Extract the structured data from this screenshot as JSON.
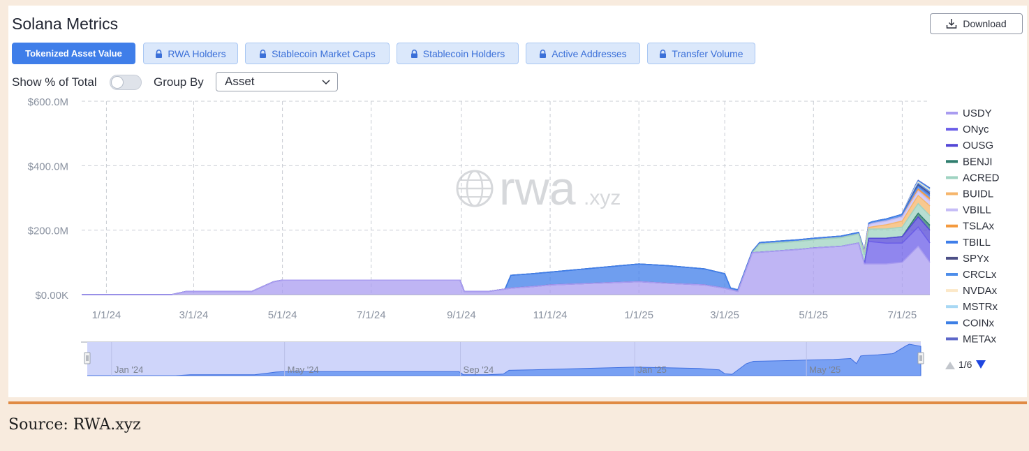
{
  "header": {
    "title": "Solana Metrics",
    "download_label": "Download"
  },
  "tabs": [
    {
      "label": "Tokenized Asset Value",
      "active": true,
      "locked": false
    },
    {
      "label": "RWA Holders",
      "active": false,
      "locked": true
    },
    {
      "label": "Stablecoin Market Caps",
      "active": false,
      "locked": true
    },
    {
      "label": "Stablecoin Holders",
      "active": false,
      "locked": true
    },
    {
      "label": "Active Addresses",
      "active": false,
      "locked": true
    },
    {
      "label": "Transfer Volume",
      "active": false,
      "locked": true
    }
  ],
  "controls": {
    "show_pct_label": "Show % of Total",
    "show_pct_enabled": false,
    "group_by_label": "Group By",
    "group_by_value": "Asset"
  },
  "legend": {
    "pager": "1/6"
  },
  "watermark": {
    "text": "rwa",
    "suffix": ".xyz"
  },
  "footer": {
    "source": "Source: RWA.xyz"
  },
  "chart_data": {
    "type": "area",
    "stacked": true,
    "y_tick_labels": [
      "$0.00K",
      "$200.0M",
      "$400.0M",
      "$600.0M"
    ],
    "y_ticks": [
      0,
      200,
      400,
      600
    ],
    "ylim": [
      0,
      600
    ],
    "y_unit": "M USD",
    "x_tick_labels": [
      "1/1/24",
      "3/1/24",
      "5/1/24",
      "7/1/24",
      "9/1/24",
      "11/1/24",
      "1/1/25",
      "3/1/25",
      "5/1/25",
      "7/1/25"
    ],
    "x_ticks": [
      "2024-01-01",
      "2024-03-01",
      "2024-05-01",
      "2024-07-01",
      "2024-09-01",
      "2024-11-01",
      "2025-01-01",
      "2025-03-01",
      "2025-05-01",
      "2025-07-01"
    ],
    "xlim": [
      "2023-12-15",
      "2025-07-20"
    ],
    "grid": true,
    "legend_position": "right",
    "navigator_labels": [
      "Jan '24",
      "May '24",
      "Sep '24",
      "Jan '25",
      "May '25"
    ],
    "navigator_ticks": [
      "2024-01-01",
      "2024-05-01",
      "2024-09-01",
      "2025-01-01",
      "2025-05-01"
    ],
    "series": [
      {
        "name": "USDY",
        "color": "#a99cf0",
        "points": [
          [
            "2023-12-15",
            0
          ],
          [
            "2024-02-15",
            0
          ],
          [
            "2024-02-25",
            10
          ],
          [
            "2024-04-10",
            10
          ],
          [
            "2024-04-20",
            30
          ],
          [
            "2024-04-25",
            40
          ],
          [
            "2024-05-01",
            45
          ],
          [
            "2024-07-01",
            45
          ],
          [
            "2024-08-31",
            45
          ],
          [
            "2024-09-03",
            10
          ],
          [
            "2024-09-20",
            10
          ],
          [
            "2024-10-05",
            20
          ],
          [
            "2024-10-20",
            25
          ],
          [
            "2024-11-01",
            30
          ],
          [
            "2024-12-01",
            35
          ],
          [
            "2025-01-01",
            40
          ],
          [
            "2025-01-20",
            35
          ],
          [
            "2025-02-15",
            30
          ],
          [
            "2025-03-01",
            20
          ],
          [
            "2025-03-10",
            10
          ],
          [
            "2025-03-20",
            130
          ],
          [
            "2025-04-20",
            140
          ],
          [
            "2025-05-01",
            145
          ],
          [
            "2025-05-20",
            150
          ],
          [
            "2025-06-01",
            160
          ],
          [
            "2025-06-05",
            95
          ],
          [
            "2025-06-20",
            95
          ],
          [
            "2025-07-01",
            100
          ],
          [
            "2025-07-12",
            150
          ],
          [
            "2025-07-20",
            100
          ]
        ]
      },
      {
        "name": "ONyc",
        "color": "#6b5ee8",
        "points": [
          [
            "2023-12-15",
            0
          ],
          [
            "2025-06-05",
            0
          ],
          [
            "2025-06-08",
            70
          ],
          [
            "2025-07-01",
            60
          ],
          [
            "2025-07-20",
            60
          ]
        ]
      },
      {
        "name": "OUSG",
        "color": "#5347d6",
        "points": [
          [
            "2023-12-15",
            0
          ],
          [
            "2025-06-05",
            0
          ],
          [
            "2025-06-08",
            10
          ],
          [
            "2025-07-01",
            20
          ],
          [
            "2025-07-20",
            40
          ]
        ]
      },
      {
        "name": "BENJI",
        "color": "#2f7d6e",
        "points": [
          [
            "2023-12-15",
            0
          ],
          [
            "2025-07-01",
            0
          ],
          [
            "2025-07-10",
            10
          ],
          [
            "2025-07-20",
            15
          ]
        ]
      },
      {
        "name": "ACRED",
        "color": "#9fd3c2",
        "points": [
          [
            "2023-12-15",
            0
          ],
          [
            "2025-03-20",
            0
          ],
          [
            "2025-03-25",
            25
          ],
          [
            "2025-05-01",
            25
          ],
          [
            "2025-06-01",
            28
          ],
          [
            "2025-07-20",
            30
          ]
        ]
      },
      {
        "name": "BUIDL",
        "color": "#f6b56b",
        "points": [
          [
            "2023-12-15",
            0
          ],
          [
            "2025-06-01",
            0
          ],
          [
            "2025-06-15",
            10
          ],
          [
            "2025-07-20",
            30
          ]
        ]
      },
      {
        "name": "VBILL",
        "color": "#c6bdf7",
        "points": [
          [
            "2023-12-15",
            0
          ],
          [
            "2025-06-01",
            0
          ],
          [
            "2025-06-10",
            10
          ],
          [
            "2025-07-20",
            15
          ]
        ]
      },
      {
        "name": "TSLAx",
        "color": "#f49a3e",
        "points": [
          [
            "2023-12-15",
            0
          ],
          [
            "2025-06-30",
            0
          ],
          [
            "2025-07-10",
            5
          ],
          [
            "2025-07-20",
            8
          ]
        ]
      },
      {
        "name": "TBILL",
        "color": "#3f7ee9",
        "points": [
          [
            "2023-12-15",
            0
          ],
          [
            "2024-10-01",
            0
          ],
          [
            "2024-10-05",
            40
          ],
          [
            "2024-11-01",
            40
          ],
          [
            "2025-01-01",
            55
          ],
          [
            "2025-01-20",
            55
          ],
          [
            "2025-02-15",
            50
          ],
          [
            "2025-03-01",
            45
          ],
          [
            "2025-03-05",
            5
          ],
          [
            "2025-04-01",
            5
          ],
          [
            "2025-06-01",
            5
          ],
          [
            "2025-07-20",
            10
          ]
        ]
      },
      {
        "name": "SPYx",
        "color": "#4c4f86",
        "points": [
          [
            "2023-12-15",
            0
          ],
          [
            "2025-06-30",
            0
          ],
          [
            "2025-07-10",
            4
          ],
          [
            "2025-07-20",
            6
          ]
        ]
      },
      {
        "name": "CRCLx",
        "color": "#4d8dea",
        "points": [
          [
            "2023-12-15",
            0
          ],
          [
            "2025-06-30",
            0
          ],
          [
            "2025-07-10",
            4
          ],
          [
            "2025-07-20",
            5
          ]
        ]
      },
      {
        "name": "NVDAx",
        "color": "#fce8c8",
        "points": [
          [
            "2023-12-15",
            0
          ],
          [
            "2025-06-30",
            0
          ],
          [
            "2025-07-10",
            3
          ],
          [
            "2025-07-20",
            4
          ]
        ]
      },
      {
        "name": "MSTRx",
        "color": "#a8d8f4",
        "points": [
          [
            "2023-12-15",
            0
          ],
          [
            "2025-06-30",
            0
          ],
          [
            "2025-07-10",
            2
          ],
          [
            "2025-07-20",
            3
          ]
        ]
      },
      {
        "name": "COINx",
        "color": "#3d7fe5",
        "points": [
          [
            "2023-12-15",
            0
          ],
          [
            "2025-06-30",
            0
          ],
          [
            "2025-07-10",
            2
          ],
          [
            "2025-07-20",
            3
          ]
        ]
      },
      {
        "name": "METAx",
        "color": "#5d67c9",
        "points": [
          [
            "2023-12-15",
            0
          ],
          [
            "2025-06-30",
            0
          ],
          [
            "2025-07-10",
            2
          ],
          [
            "2025-07-20",
            2
          ]
        ]
      }
    ]
  }
}
